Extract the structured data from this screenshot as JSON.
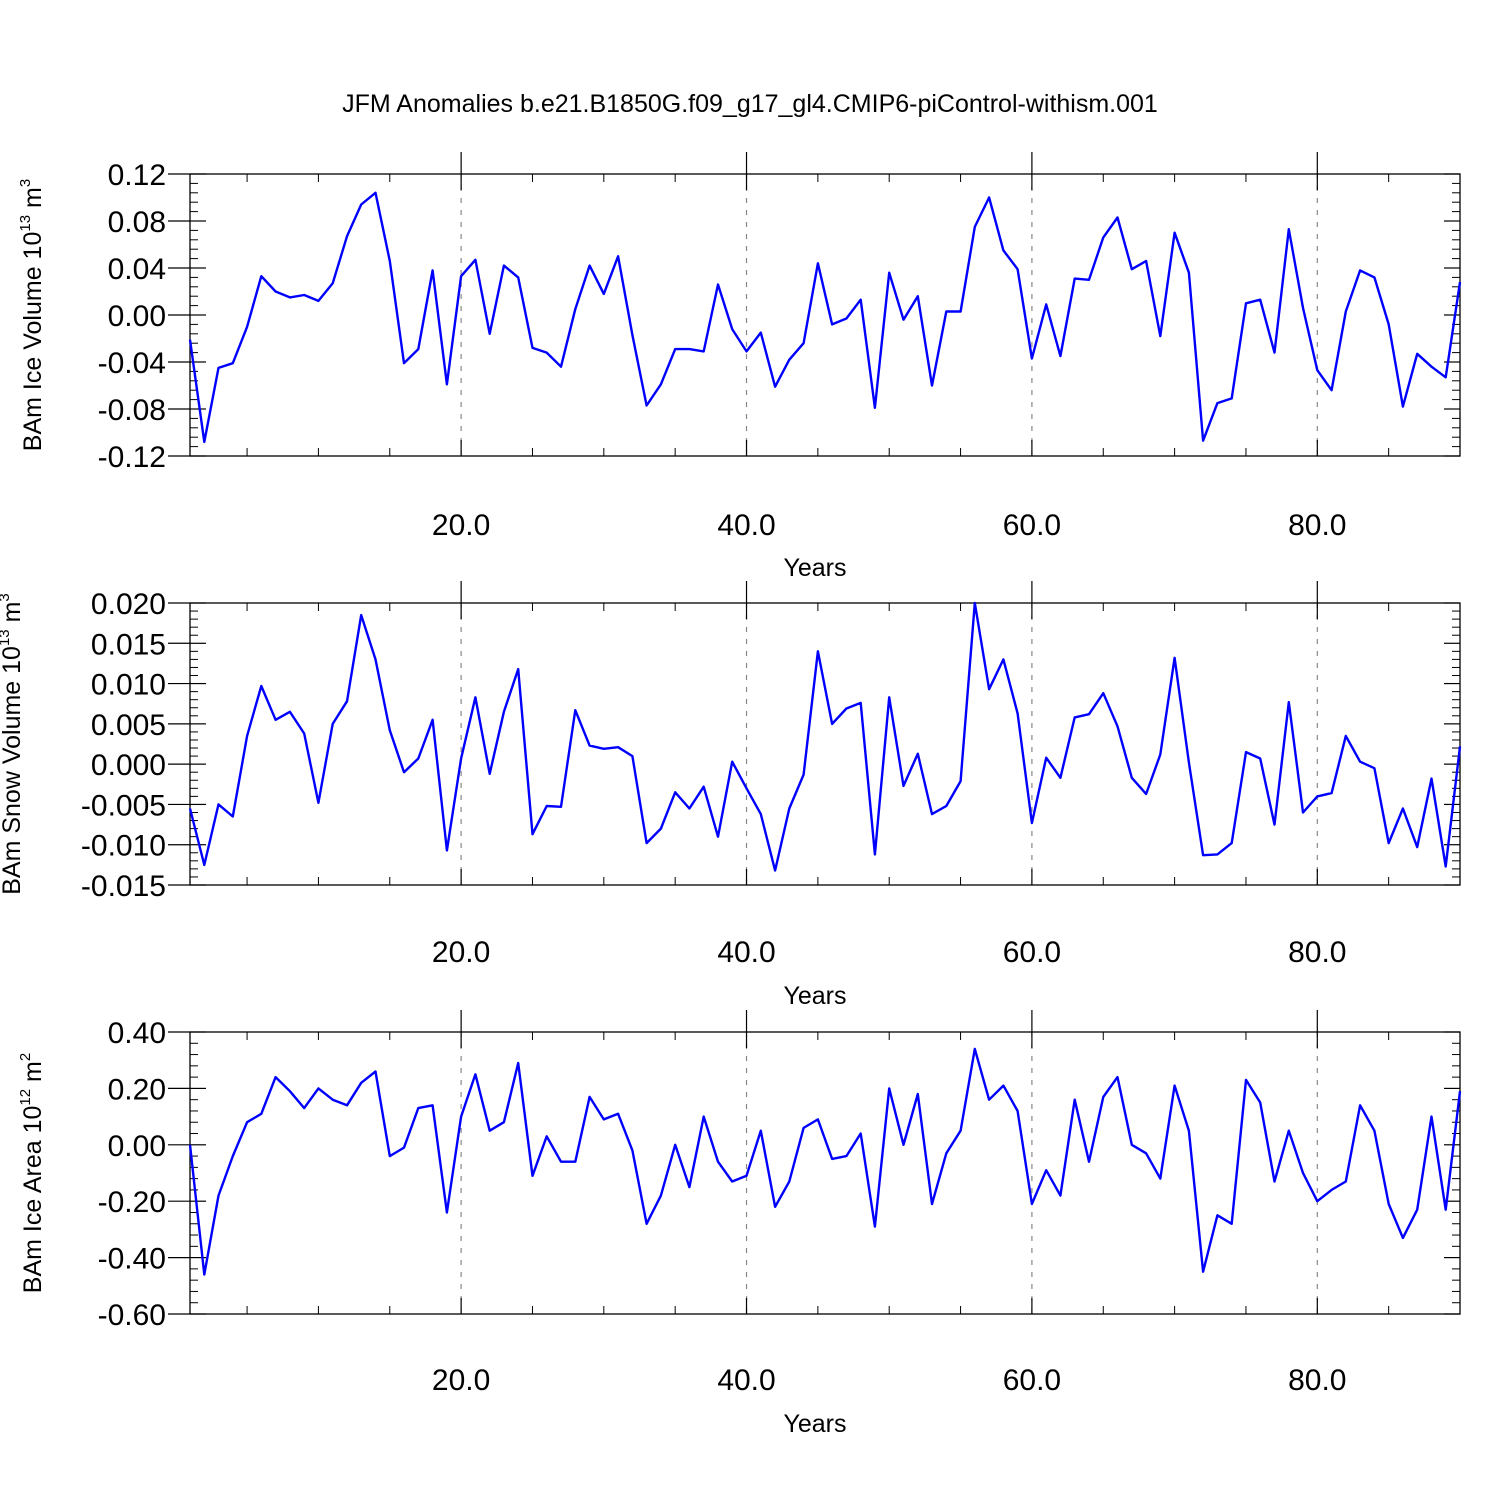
{
  "title": "JFM Anomalies b.e21.B1850G.f09_g17_gl4.CMIP6-piControl-withism.001",
  "colors": {
    "line": "#0000ff",
    "axes": "#000000",
    "grid": "#888888",
    "background": "#ffffff"
  },
  "chart_data": [
    {
      "type": "line",
      "xlabel": "Years",
      "ylabel": {
        "text": "BAm Ice Volume 10",
        "exp": "13",
        "unit": "m",
        "unit_exp": "3"
      },
      "xlim": [
        1,
        90
      ],
      "ylim": [
        -0.12,
        0.12
      ],
      "xticks": [
        20,
        40,
        60,
        80
      ],
      "xtick_labels": [
        "20.0",
        "40.0",
        "60.0",
        "80.0"
      ],
      "yticks": [
        -0.12,
        -0.08,
        -0.04,
        0.0,
        0.04,
        0.08,
        0.12
      ],
      "ytick_labels": [
        "-0.12",
        "-0.08",
        "-0.04",
        "0.00",
        "0.04",
        "0.08",
        "0.12"
      ],
      "grid": "vertical dashed at major x ticks",
      "series": [
        {
          "x_start": 1,
          "x_step": 1,
          "values": [
            -0.021,
            -0.108,
            -0.045,
            -0.041,
            -0.01,
            0.033,
            0.02,
            0.015,
            0.017,
            0.012,
            0.027,
            0.067,
            0.094,
            0.104,
            0.046,
            -0.041,
            -0.029,
            0.038,
            -0.059,
            0.033,
            0.047,
            -0.016,
            0.042,
            0.032,
            -0.028,
            -0.032,
            -0.044,
            0.005,
            0.042,
            0.018,
            0.05,
            -0.017,
            -0.077,
            -0.059,
            -0.029,
            -0.029,
            -0.031,
            0.026,
            -0.012,
            -0.031,
            -0.015,
            -0.061,
            -0.038,
            -0.024,
            0.044,
            -0.008,
            -0.003,
            0.013,
            -0.079,
            0.036,
            -0.004,
            0.016,
            -0.06,
            0.003,
            0.003,
            0.075,
            0.1,
            0.055,
            0.039,
            -0.037,
            0.009,
            -0.035,
            0.031,
            0.03,
            0.066,
            0.083,
            0.039,
            0.046,
            -0.018,
            0.07,
            0.036,
            -0.107,
            -0.075,
            -0.071,
            0.01,
            0.013,
            -0.032,
            0.073,
            0.006,
            -0.047,
            -0.064,
            0.003,
            0.038,
            0.032,
            -0.008,
            -0.078,
            -0.033,
            -0.044,
            -0.053,
            0.028
          ]
        }
      ]
    },
    {
      "type": "line",
      "xlabel": "Years",
      "ylabel": {
        "text": "BAm Snow Volume 10",
        "exp": "13",
        "unit": "m",
        "unit_exp": "3"
      },
      "xlim": [
        1,
        90
      ],
      "ylim": [
        -0.015,
        0.02
      ],
      "xticks": [
        20,
        40,
        60,
        80
      ],
      "xtick_labels": [
        "20.0",
        "40.0",
        "60.0",
        "80.0"
      ],
      "yticks": [
        -0.015,
        -0.01,
        -0.005,
        0.0,
        0.005,
        0.01,
        0.015,
        0.02
      ],
      "ytick_labels": [
        "-0.015",
        "-0.010",
        "-0.005",
        "0.000",
        "0.005",
        "0.010",
        "0.015",
        "0.020"
      ],
      "grid": "vertical dashed at major x ticks",
      "series": [
        {
          "x_start": 1,
          "x_step": 1,
          "values": [
            -0.0055,
            -0.0125,
            -0.005,
            -0.0065,
            0.0035,
            0.0097,
            0.0055,
            0.0065,
            0.0038,
            -0.0048,
            0.005,
            0.0078,
            0.0185,
            0.013,
            0.0042,
            -0.001,
            0.0007,
            0.0055,
            -0.0107,
            0.0007,
            0.0083,
            -0.0012,
            0.0065,
            0.0118,
            -0.0087,
            -0.0052,
            -0.0053,
            0.0067,
            0.0023,
            0.0019,
            0.0021,
            0.001,
            -0.0098,
            -0.008,
            -0.0035,
            -0.0055,
            -0.0028,
            -0.009,
            0.0003,
            -0.003,
            -0.0062,
            -0.0132,
            -0.0055,
            -0.0013,
            0.014,
            0.005,
            0.0069,
            0.0076,
            -0.0112,
            0.0083,
            -0.0027,
            0.0013,
            -0.0062,
            -0.0052,
            -0.0021,
            0.02,
            0.0093,
            0.013,
            0.0063,
            -0.0073,
            0.0008,
            -0.0017,
            0.0058,
            0.0062,
            0.0088,
            0.0047,
            -0.0017,
            -0.0037,
            0.0012,
            0.0132,
            0.0002,
            -0.0113,
            -0.0112,
            -0.0098,
            0.0015,
            0.0007,
            -0.0075,
            0.0077,
            -0.006,
            -0.004,
            -0.0036,
            0.0035,
            0.0003,
            -0.0005,
            -0.0098,
            -0.0055,
            -0.0103,
            -0.0018,
            -0.0127,
            0.0022
          ]
        }
      ]
    },
    {
      "type": "line",
      "xlabel": "Years",
      "ylabel": {
        "text": "BAm Ice Area 10",
        "exp": "12",
        "unit": "m",
        "unit_exp": "2"
      },
      "xlim": [
        1,
        90
      ],
      "ylim": [
        -0.6,
        0.4
      ],
      "xticks": [
        20,
        40,
        60,
        80
      ],
      "xtick_labels": [
        "20.0",
        "40.0",
        "60.0",
        "80.0"
      ],
      "yticks": [
        -0.6,
        -0.4,
        -0.2,
        0.0,
        0.2,
        0.4
      ],
      "ytick_labels": [
        "-0.60",
        "-0.40",
        "-0.20",
        "0.00",
        "0.20",
        "0.40"
      ],
      "grid": "vertical dashed at major x ticks",
      "series": [
        {
          "x_start": 1,
          "x_step": 1,
          "values": [
            0.0,
            -0.46,
            -0.18,
            -0.04,
            0.08,
            0.11,
            0.24,
            0.19,
            0.13,
            0.2,
            0.16,
            0.14,
            0.22,
            0.26,
            -0.04,
            -0.01,
            0.13,
            0.14,
            -0.24,
            0.1,
            0.25,
            0.05,
            0.08,
            0.29,
            -0.11,
            0.03,
            -0.06,
            -0.06,
            0.17,
            0.09,
            0.11,
            -0.02,
            -0.28,
            -0.18,
            0.0,
            -0.15,
            0.1,
            -0.06,
            -0.13,
            -0.11,
            0.05,
            -0.22,
            -0.13,
            0.06,
            0.09,
            -0.05,
            -0.04,
            0.04,
            -0.29,
            0.2,
            0.0,
            0.18,
            -0.21,
            -0.03,
            0.05,
            0.34,
            0.16,
            0.21,
            0.12,
            -0.21,
            -0.09,
            -0.18,
            0.16,
            -0.06,
            0.17,
            0.24,
            0.0,
            -0.03,
            -0.12,
            0.21,
            0.05,
            -0.45,
            -0.25,
            -0.28,
            0.23,
            0.15,
            -0.13,
            0.05,
            -0.1,
            -0.2,
            -0.16,
            -0.13,
            0.14,
            0.05,
            -0.21,
            -0.33,
            -0.23,
            0.1,
            -0.23,
            0.19
          ]
        }
      ]
    }
  ]
}
